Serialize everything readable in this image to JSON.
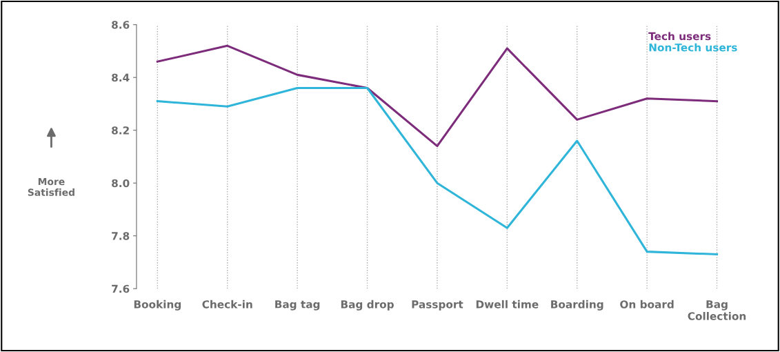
{
  "chart_data": {
    "type": "line",
    "annotations": [
      "More\nSatisfied"
    ],
    "categories": [
      "Booking",
      "Check-in",
      "Bag tag",
      "Bag drop",
      "Passport",
      "Dwell time",
      "Boarding",
      "On board",
      "Bag\nCollection"
    ],
    "series": [
      {
        "name": "Tech users",
        "color": "#7d2b7b",
        "values": [
          8.46,
          8.52,
          8.41,
          8.36,
          8.14,
          8.51,
          8.24,
          8.32,
          8.31
        ]
      },
      {
        "name": "Non-Tech users",
        "color": "#2fb5d9",
        "values": [
          8.31,
          8.29,
          8.36,
          8.36,
          8.0,
          7.83,
          8.16,
          7.74,
          7.73
        ]
      }
    ],
    "ylim": [
      7.6,
      8.6
    ],
    "yticks": [
      7.6,
      7.8,
      {
        "value": 8.0,
        "label": "8.0"
      },
      8.2,
      8.4,
      8.6
    ],
    "grid": "x",
    "legend": "top right",
    "marker": "none",
    "line_style": "solid"
  }
}
